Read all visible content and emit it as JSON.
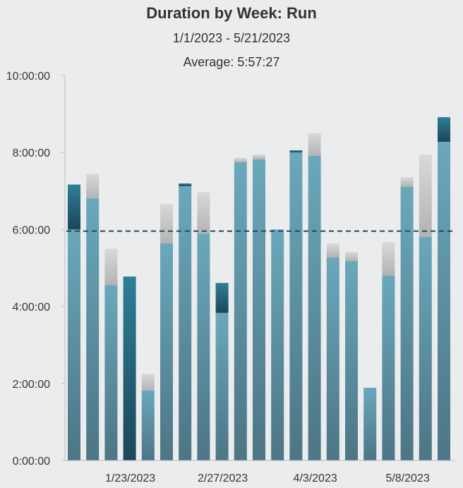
{
  "chart_data": {
    "type": "bar",
    "title": "Duration by Week: Run",
    "subtitle": "1/1/2023 - 5/21/2023",
    "average_label": "Average: 5:57:27",
    "average_seconds": 21447,
    "ylim_seconds": [
      0,
      36000
    ],
    "y_ticks": [
      {
        "value": 0,
        "label": "0:00:00"
      },
      {
        "value": 7200,
        "label": "2:00:00"
      },
      {
        "value": 14400,
        "label": "4:00:00"
      },
      {
        "value": 21600,
        "label": "6:00:00"
      },
      {
        "value": 28800,
        "label": "8:00:00"
      },
      {
        "value": 36000,
        "label": "10:00:00"
      }
    ],
    "x_tick_labels": [
      {
        "index": 3,
        "label": "1/23/2023"
      },
      {
        "index": 8,
        "label": "2/27/2023"
      },
      {
        "index": 13,
        "label": "4/3/2023"
      },
      {
        "index": 18,
        "label": "5/8/2023"
      }
    ],
    "series_note": "Each week shows the bar value; the lighter grey cap marks a previous-period value above it and the darker teal cap marks the portion above the previous value.",
    "bars": [
      {
        "week": 1,
        "value": 25800,
        "previous": 21600
      },
      {
        "week": 2,
        "value": 24500,
        "previous": 26800
      },
      {
        "week": 3,
        "value": 16400,
        "previous": 19800
      },
      {
        "week": 4,
        "value": 17200,
        "previous": 0
      },
      {
        "week": 5,
        "value": 6550,
        "previous": 8100
      },
      {
        "week": 6,
        "value": 20300,
        "previous": 24000
      },
      {
        "week": 7,
        "value": 25900,
        "previous": 25650
      },
      {
        "week": 8,
        "value": 21200,
        "previous": 25100
      },
      {
        "week": 9,
        "value": 16600,
        "previous": 13800
      },
      {
        "week": 10,
        "value": 27900,
        "previous": 28300
      },
      {
        "week": 11,
        "value": 28150,
        "previous": 28600
      },
      {
        "week": 12,
        "value": 21600,
        "previous": 21600
      },
      {
        "week": 13,
        "value": 29000,
        "previous": 28800
      },
      {
        "week": 14,
        "value": 28500,
        "previous": 30600
      },
      {
        "week": 15,
        "value": 19000,
        "previous": 20300
      },
      {
        "week": 16,
        "value": 18650,
        "previous": 19500
      },
      {
        "week": 17,
        "value": 6800,
        "previous": 6800
      },
      {
        "week": 18,
        "value": 17300,
        "previous": 20400
      },
      {
        "week": 19,
        "value": 25600,
        "previous": 26500
      },
      {
        "week": 20,
        "value": 20900,
        "previous": 28600
      },
      {
        "week": 21,
        "value": 32100,
        "previous": 29800
      }
    ],
    "colors": {
      "bar_top": "#6aa8bb",
      "bar_bottom": "#4d7585",
      "gain_top": "#2e7f98",
      "gain_bottom": "#1c4658",
      "loss_top": "#d9d9d9",
      "loss_bottom": "#b3b3b3",
      "average_line": "#1f4a5c",
      "axis": "#bdbdbd"
    }
  }
}
